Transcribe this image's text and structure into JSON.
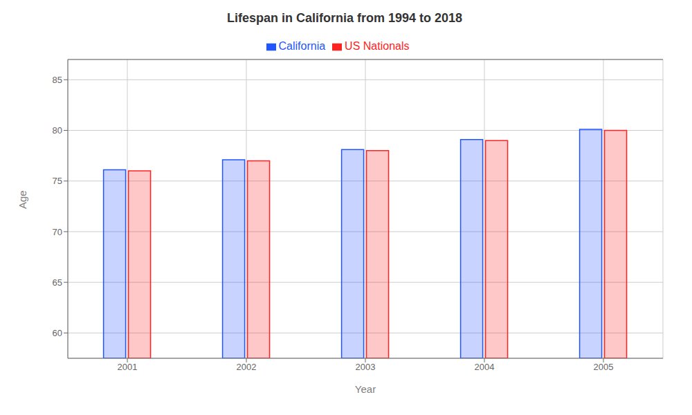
{
  "chart_data": {
    "type": "bar",
    "title": "Lifespan in California from 1994 to 2018",
    "x_label": "Year",
    "y_label": "Age",
    "categories": [
      "2001",
      "2002",
      "2003",
      "2004",
      "2005"
    ],
    "series": [
      {
        "name": "California",
        "color": "#2255ff",
        "values": [
          76.1,
          77.1,
          78.1,
          79.1,
          80.1
        ]
      },
      {
        "name": "US Nationals",
        "color": "#ff2222",
        "values": [
          76.0,
          77.0,
          78.0,
          79.0,
          80.0
        ]
      }
    ],
    "ylim": [
      57.5,
      87
    ],
    "yticks": [
      60,
      65,
      70,
      75,
      80,
      85
    ],
    "grid": true,
    "legend": "top"
  }
}
